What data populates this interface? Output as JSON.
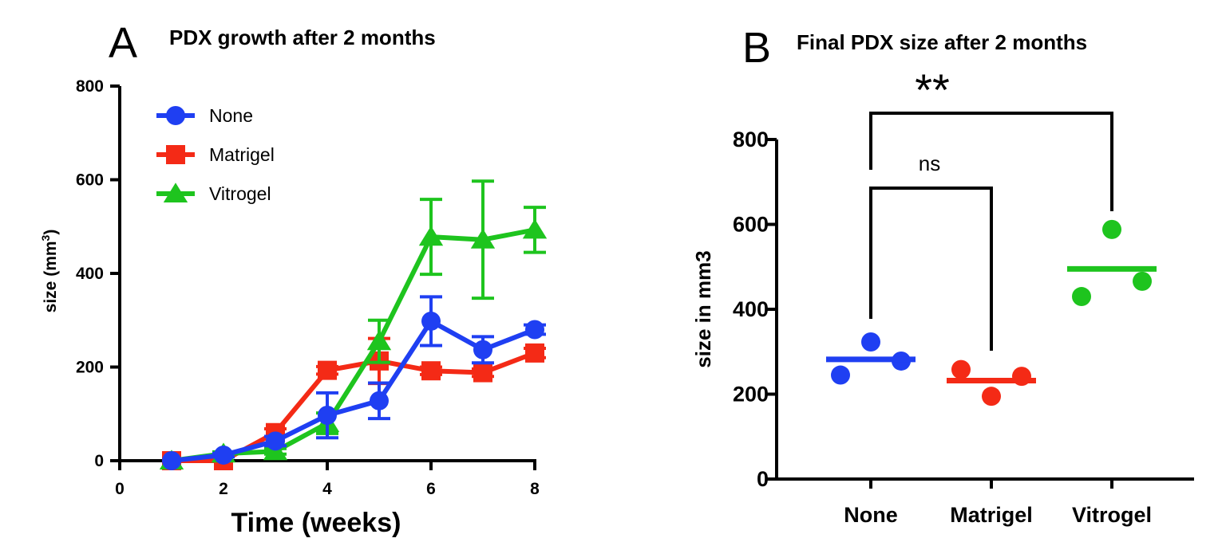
{
  "chart_data": [
    {
      "panel": "A",
      "type": "line",
      "title": "PDX growth after 2 months",
      "xlabel": "Time (weeks)",
      "ylabel": "size (mm",
      "ylabel_sup": "3",
      "ylabel_close": ")",
      "xlim": [
        0,
        8
      ],
      "ylim": [
        0,
        800
      ],
      "xticks": [
        0,
        2,
        4,
        6,
        8
      ],
      "yticks": [
        0,
        200,
        400,
        600,
        800
      ],
      "legend_position": "top-left",
      "series": [
        {
          "name": "None",
          "color": "#1f3ff2",
          "marker": "circle",
          "x": [
            1,
            2,
            3,
            4,
            5,
            6,
            7,
            8
          ],
          "y": [
            0,
            12,
            42,
            97,
            128,
            298,
            237,
            280
          ],
          "err": [
            0,
            4,
            10,
            48,
            38,
            52,
            28,
            10
          ]
        },
        {
          "name": "Matrigel",
          "color": "#f42a16",
          "marker": "square",
          "x": [
            1,
            2,
            3,
            4,
            5,
            6,
            7,
            8
          ],
          "y": [
            0,
            0,
            60,
            193,
            213,
            192,
            188,
            230
          ],
          "err": [
            0,
            0,
            8,
            8,
            48,
            8,
            8,
            10
          ]
        },
        {
          "name": "Vitrogel",
          "color": "#1ec41e",
          "marker": "triangle",
          "x": [
            1,
            2,
            3,
            4,
            5,
            6,
            7,
            8
          ],
          "y": [
            0,
            15,
            20,
            80,
            255,
            478,
            472,
            493
          ],
          "err": [
            0,
            4,
            6,
            22,
            45,
            80,
            125,
            48
          ]
        }
      ]
    },
    {
      "panel": "B",
      "type": "scatter",
      "title": "Final PDX size after 2 months",
      "xlabel": "",
      "ylabel": "size in mm3",
      "ylim": [
        0,
        800
      ],
      "yticks": [
        0,
        200,
        400,
        600,
        800
      ],
      "categories": [
        "None",
        "Matrigel",
        "Vitrogel"
      ],
      "series": [
        {
          "name": "None",
          "color": "#1f3ff2",
          "points": [
            245,
            323,
            278
          ],
          "mean": 282
        },
        {
          "name": "Matrigel",
          "color": "#f42a16",
          "points": [
            258,
            195,
            242
          ],
          "mean": 232
        },
        {
          "name": "Vitrogel",
          "color": "#1ec41e",
          "points": [
            430,
            588,
            466
          ],
          "mean": 495
        }
      ],
      "comparisons": [
        {
          "from": "None",
          "to": "Matrigel",
          "label": "ns"
        },
        {
          "from": "None",
          "to": "Vitrogel",
          "label": "**"
        }
      ]
    }
  ]
}
